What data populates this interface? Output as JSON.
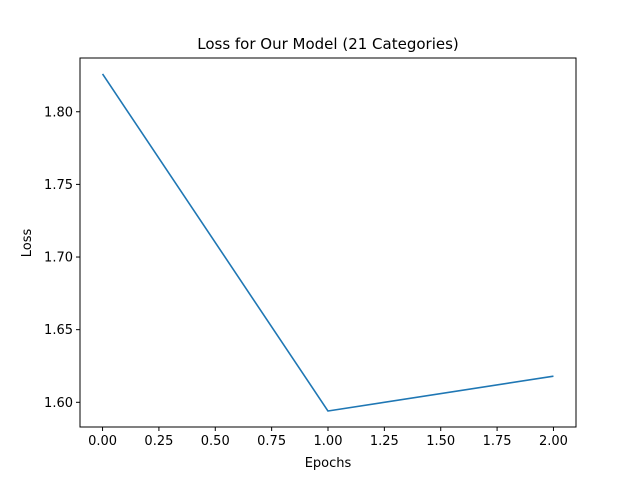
{
  "chart_data": {
    "type": "line",
    "title": "Loss for Our Model (21 Categories)",
    "xlabel": "Epochs",
    "ylabel": "Loss",
    "series": [
      {
        "x": [
          0,
          1,
          2
        ],
        "values": [
          1.826,
          1.594,
          1.618
        ],
        "color": "#1f77b4"
      }
    ],
    "xlim": [
      -0.1,
      2.1
    ],
    "ylim": [
      1.583,
      1.837
    ],
    "xticks": [
      0.0,
      0.25,
      0.5,
      0.75,
      1.0,
      1.25,
      1.5,
      1.75,
      2.0
    ],
    "xtick_labels": [
      "0.00",
      "0.25",
      "0.50",
      "0.75",
      "1.00",
      "1.25",
      "1.50",
      "1.75",
      "2.00"
    ],
    "yticks": [
      1.6,
      1.65,
      1.7,
      1.75,
      1.8
    ],
    "ytick_labels": [
      "1.60",
      "1.65",
      "1.70",
      "1.75",
      "1.80"
    ],
    "grid": false,
    "legend": "none"
  }
}
